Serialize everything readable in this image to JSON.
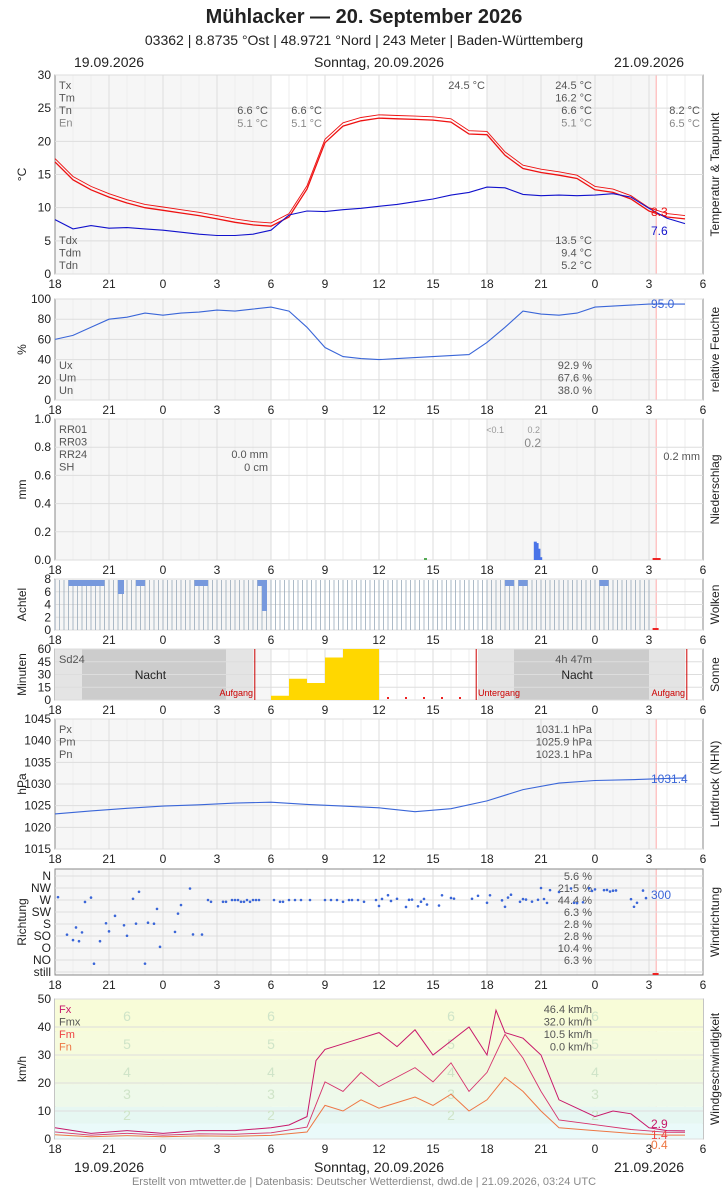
{
  "header": {
    "title": "Mühlacker  —  20. September 2026",
    "subtitle": "03362  |  8.8735 °Ost  |  48.9721 °Nord  |  243 Meter  |  Baden-Württemberg",
    "date_left": "19.09.2026",
    "date_center": "Sonntag, 20.09.2026",
    "date_right": "21.09.2026"
  },
  "footer": {
    "date_left": "19.09.2026",
    "date_center": "Sonntag, 20.09.2026",
    "date_right": "21.09.2026",
    "credit": "Erstellt von mtwetter.de | Datenbasis: Deutscher Wetterdienst, dwd.de | 21.09.2026, 03:24 UTC"
  },
  "colors": {
    "grid": "#dddddd",
    "bg": "#f4f4f4",
    "temp": "#ee1111",
    "dew": "#1111cc",
    "humid": "#3a66d8",
    "press": "#3a66d8",
    "rain": "#4a74e8",
    "cloud": "#7799dd",
    "sun": "#ffd700",
    "gust": "#c8186a",
    "wind": "#ee7744",
    "night": "#bbbbbb"
  },
  "chart_data": [
    {
      "type": "line",
      "ylabel": "°C",
      "side_label": "Temperatur & Taupunkt",
      "x_ticks": [
        "18",
        "21",
        "0",
        "3",
        "6",
        "9",
        "12",
        "15",
        "18",
        "21",
        "0",
        "3",
        "6"
      ],
      "ylim": [
        0,
        30
      ],
      "y_ticks": [
        "0",
        "5",
        "10",
        "15",
        "20",
        "25",
        "30"
      ],
      "series": [
        {
          "name": "Temperatur",
          "color": "#ee1111",
          "x": [
            18,
            19,
            20,
            21,
            22,
            23,
            0,
            1,
            2,
            3,
            4,
            5,
            6,
            7,
            8,
            9,
            10,
            11,
            12,
            13,
            14,
            15,
            16,
            17,
            18,
            19,
            20,
            21,
            22,
            23,
            0,
            1,
            2,
            3,
            4,
            5
          ],
          "values": [
            16.9,
            14.2,
            12.7,
            11.6,
            10.7,
            10.0,
            9.6,
            9.2,
            8.8,
            8.3,
            7.8,
            7.4,
            7.2,
            8.6,
            12.8,
            19.8,
            22.3,
            23.1,
            23.5,
            23.4,
            23.3,
            23.2,
            22.9,
            21.1,
            21.0,
            17.9,
            15.9,
            15.3,
            14.9,
            14.4,
            12.7,
            12.3,
            11.3,
            9.5,
            8.6,
            8.3
          ]
        },
        {
          "name": "Taupunkt",
          "color": "#1111cc",
          "x": [
            18,
            19,
            20,
            21,
            22,
            23,
            0,
            1,
            2,
            3,
            4,
            5,
            6,
            7,
            8,
            9,
            10,
            11,
            12,
            13,
            14,
            15,
            16,
            17,
            18,
            19,
            20,
            21,
            22,
            23,
            0,
            1,
            2,
            3,
            4,
            5
          ],
          "values": [
            8.2,
            6.8,
            7.3,
            6.9,
            7.0,
            6.8,
            6.6,
            6.3,
            6.0,
            5.8,
            5.8,
            6.0,
            6.6,
            8.9,
            9.5,
            9.4,
            9.7,
            9.9,
            10.2,
            10.5,
            10.9,
            11.3,
            11.9,
            12.3,
            13.1,
            13.0,
            12.0,
            11.8,
            11.9,
            11.8,
            11.9,
            12.1,
            11.6,
            9.9,
            8.4,
            7.6
          ]
        }
      ],
      "labels": {
        "left": [
          "Tx",
          "Tm",
          "Tn",
          "En"
        ],
        "left_bottom": [
          "Tdx",
          "Tdm",
          "Tdn"
        ],
        "day1": {
          "tn": "6.6 °C",
          "en": "5.1 °C"
        },
        "night": {
          "tn": "6.6 °C",
          "en": "5.1 °C"
        },
        "day2": {
          "tx": "24.5 °C",
          "tm": "16.2 °C",
          "tn": "6.6 °C",
          "en": "5.1 °C",
          "tdx": "13.5 °C",
          "tdm": "9.4 °C",
          "tdn": "5.2 °C"
        },
        "peak": "24.5 °C",
        "right": {
          "tn": "8.2 °C",
          "en": "6.5 °C"
        },
        "last_temp": "8.3",
        "last_dew": "7.6"
      }
    },
    {
      "type": "line",
      "ylabel": "%",
      "side_label": "relative Feuchte",
      "ylim": [
        0,
        100
      ],
      "y_ticks": [
        "0",
        "20",
        "40",
        "60",
        "80",
        "100"
      ],
      "series": [
        {
          "name": "Feuchte",
          "color": "#3a66d8",
          "x": [
            18,
            19,
            20,
            21,
            22,
            23,
            0,
            1,
            2,
            3,
            4,
            5,
            6,
            7,
            8,
            9,
            10,
            11,
            12,
            13,
            14,
            15,
            16,
            17,
            18,
            19,
            20,
            21,
            22,
            23,
            0,
            1,
            2,
            3,
            4,
            5
          ],
          "values": [
            60,
            64,
            72,
            80,
            82,
            86,
            84,
            86,
            87,
            89,
            88,
            90,
            92,
            88,
            72,
            52,
            43,
            41,
            40,
            41,
            42,
            43,
            44,
            45,
            57,
            72,
            88,
            85,
            84,
            86,
            92,
            93,
            94,
            95,
            95,
            95
          ]
        }
      ],
      "labels": {
        "left": [
          "Ux",
          "Um",
          "Un"
        ],
        "values": [
          "92.9 %",
          "67.6 %",
          "38.0 %"
        ],
        "last": "95.0"
      }
    },
    {
      "type": "bar",
      "ylabel": "mm",
      "side_label": "Niederschlag",
      "ylim": [
        0,
        1.0
      ],
      "y_ticks": [
        "0.0",
        "0.2",
        "0.4",
        "0.6",
        "0.8",
        "1.0"
      ],
      "x": [
        20.6,
        20.7,
        20.8,
        20.9
      ],
      "values": [
        0.13,
        0.12,
        0.08,
        0.02
      ],
      "labels": {
        "left": [
          "RR01",
          "RR03",
          "RR24",
          "SH"
        ],
        "rr24": "0.0 mm",
        "sh": "0 cm",
        "small1": "<0.1",
        "small2": "0.2",
        "big": "0.2",
        "right": "0.2 mm"
      }
    },
    {
      "type": "bar",
      "ylabel": "Achtel",
      "side_label": "Wolken",
      "ylim": [
        0,
        8
      ],
      "y_ticks": [
        "0",
        "2",
        "4",
        "6",
        "8"
      ],
      "values_hint": "cloud cover in oktas, mostly 8"
    },
    {
      "type": "bar",
      "ylabel": "Minuten",
      "side_label": "Sonne",
      "ylim": [
        0,
        60
      ],
      "y_ticks": [
        "0",
        "15",
        "30",
        "45",
        "60"
      ],
      "x": [
        6,
        7,
        8,
        9,
        10,
        11
      ],
      "values": [
        5,
        25,
        20,
        50,
        60,
        60
      ],
      "labels": {
        "sd24": "Sd24",
        "night": "Nacht",
        "sunrise": "Aufgang",
        "sunset": "Untergang",
        "duration": "4h 47m"
      }
    },
    {
      "type": "line",
      "ylabel": "hPa",
      "side_label": "Luftdruck (NHN)",
      "ylim": [
        1015,
        1045
      ],
      "y_ticks": [
        "1015",
        "1020",
        "1025",
        "1030",
        "1035",
        "1040",
        "1045"
      ],
      "series": [
        {
          "name": "Luftdruck",
          "color": "#3a66d8",
          "x": [
            18,
            20,
            22,
            0,
            2,
            4,
            6,
            8,
            10,
            12,
            14,
            16,
            18,
            20,
            22,
            0,
            2,
            4,
            5
          ],
          "values": [
            1023.1,
            1023.8,
            1024.4,
            1024.9,
            1025.2,
            1025.6,
            1025.8,
            1025.3,
            1024.9,
            1024.5,
            1023.6,
            1024.3,
            1026.1,
            1028.7,
            1030.2,
            1030.8,
            1031.0,
            1031.3,
            1031.4
          ]
        }
      ],
      "labels": {
        "left": [
          "Px",
          "Pm",
          "Pn"
        ],
        "values": [
          "1031.1 hPa",
          "1025.9 hPa",
          "1023.1 hPa"
        ],
        "last": "1031.4"
      }
    },
    {
      "type": "scatter",
      "ylabel": "Richtung",
      "side_label": "Windrichtung",
      "categories": [
        "N",
        "NW",
        "W",
        "SW",
        "S",
        "SO",
        "O",
        "NO",
        "still"
      ],
      "percents": [
        "5.6 %",
        "21.5 %",
        "44.4 %",
        "6.3 %",
        "2.8 %",
        "2.8 %",
        "10.4 %",
        "6.3 %"
      ],
      "labels": {
        "last": "300"
      }
    },
    {
      "type": "line",
      "ylabel": "km/h",
      "side_label": "Windgeschwindigkeit",
      "ylim": [
        0,
        50
      ],
      "y_ticks": [
        "0",
        "10",
        "20",
        "30",
        "40",
        "50"
      ],
      "series": [
        {
          "name": "Fx",
          "color": "#c8186a",
          "x": [
            18,
            20,
            22,
            0,
            2,
            4,
            6,
            7,
            8,
            8.5,
            9,
            10,
            11,
            12,
            13,
            14,
            15,
            16,
            17,
            18,
            18.5,
            19,
            20,
            21,
            22,
            23,
            0,
            1,
            2,
            3,
            4,
            5
          ],
          "values": [
            4,
            2,
            3,
            2,
            3,
            3,
            4,
            5,
            8,
            28,
            32,
            34,
            36,
            38,
            33,
            39,
            30,
            35,
            40,
            30,
            46,
            38,
            36,
            30,
            14,
            11,
            8,
            10,
            9,
            4,
            3,
            2.9
          ]
        },
        {
          "name": "Fm",
          "color": "#ee7744",
          "x": [
            18,
            20,
            22,
            0,
            2,
            4,
            6,
            8,
            9,
            10,
            11,
            12,
            13,
            14,
            15,
            16,
            17,
            18,
            19,
            20,
            21,
            22,
            0,
            2,
            4,
            5
          ],
          "values": [
            1.5,
            0.8,
            1.2,
            0.8,
            1.1,
            1.0,
            1.3,
            2.5,
            12,
            10,
            14,
            11,
            13,
            15,
            12,
            16,
            10,
            14,
            22,
            17,
            10,
            4,
            3,
            2,
            1.4,
            1.4
          ]
        }
      ],
      "labels": {
        "left": [
          "Fx",
          "Fmx",
          "Fm",
          "Fn"
        ],
        "values": [
          "46.4 km/h",
          "32.0 km/h",
          "10.5 km/h",
          "0.0 km/h"
        ],
        "last_fx": "2.9",
        "last_fm": "1.4",
        "last_fn": "0.4",
        "bft": [
          "6",
          "5",
          "4",
          "3",
          "2"
        ]
      }
    }
  ]
}
